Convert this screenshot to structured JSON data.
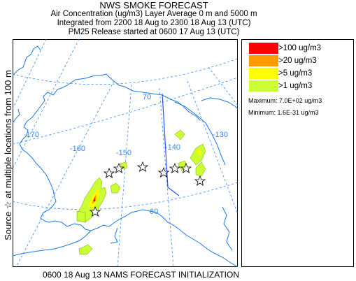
{
  "header": {
    "title": "NWS SMOKE FORECAST",
    "line2": "Air Concentration (ug/m3) Layer Average    0 m and  5000 m",
    "line3": "Integrated from 2200 18 Aug to 2300 18 Aug 13 (UTC)",
    "line4": "PM25 Release started at 0600 17 Aug 13 (UTC)"
  },
  "side_label": "Source ☆   at multiple locations   from   100 m",
  "legend": {
    "items": [
      {
        "label": ">100 ug/m3",
        "color": "#ff0000"
      },
      {
        "label": ">20 ug/m3",
        "color": "#ff9900"
      },
      {
        "label": ">5 ug/m3",
        "color": "#ffff00"
      },
      {
        "label": ">1 ug/m3",
        "color": "#ccff33"
      }
    ],
    "maximum": "Maximum: 7.0E+02 ug/m3",
    "minimum": "Minimum: 1.6E-31 ug/m3"
  },
  "map": {
    "lon_labels": [
      "-170",
      "-160",
      "-150",
      "-140",
      "-130"
    ],
    "lat_labels": [
      "70",
      "60"
    ],
    "colors": {
      "coast": "#1a78e0",
      "graticule": "#3388ff",
      "border": "#2255ff"
    }
  },
  "footer": "0600 18 Aug 13 NAMS FORECAST INITIALIZATION"
}
